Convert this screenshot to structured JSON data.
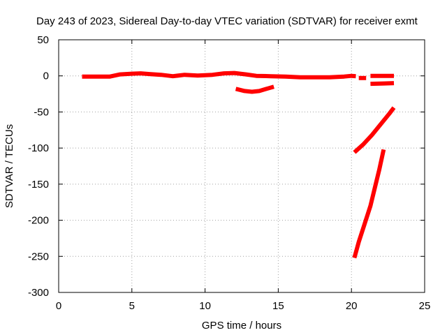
{
  "chart_data": {
    "type": "line",
    "title": "Day 243 of 2023, Sidereal Day-to-day VTEC variation (SDTVAR) for receiver exmt",
    "xlabel": "GPS time / hours",
    "ylabel": "SDTVAR / TECUs",
    "xlim": [
      0,
      25
    ],
    "ylim": [
      -300,
      50
    ],
    "xticks": [
      0,
      5,
      10,
      15,
      20,
      25
    ],
    "yticks": [
      -300,
      -250,
      -200,
      -150,
      -100,
      -50,
      0,
      50
    ],
    "grid": true,
    "legend": "none",
    "color": "#ff0000",
    "series": [
      {
        "x": [
          1.6,
          2.5,
          3.5,
          4.2,
          5.0,
          5.6,
          6.2,
          7.0,
          7.8,
          8.6,
          9.5,
          10.5,
          11.3,
          12.0,
          12.8,
          13.5,
          14.5,
          15.5,
          16.5,
          17.5,
          18.5,
          19.5,
          20.0,
          20.3
        ],
        "y": [
          -1,
          -1,
          -1,
          2,
          3,
          3.5,
          2.5,
          1.5,
          -0.5,
          1.5,
          0.5,
          1.5,
          3.5,
          4,
          2,
          0,
          -0.5,
          -1,
          -2,
          -2,
          -2,
          -1,
          0,
          -0.5
        ]
      },
      {
        "x": [
          20.5,
          21.0
        ],
        "y": [
          -3,
          -3
        ]
      },
      {
        "x": [
          21.3,
          22.0,
          22.9
        ],
        "y": [
          0,
          0,
          0
        ]
      },
      {
        "x": [
          21.3,
          22.2,
          22.9
        ],
        "y": [
          -11,
          -10.5,
          -10
        ]
      },
      {
        "x": [
          12.1,
          12.7,
          13.2,
          13.7,
          14.2,
          14.7
        ],
        "y": [
          -18,
          -21,
          -22,
          -21,
          -18,
          -15
        ]
      },
      {
        "x": [
          20.2,
          20.8,
          21.4,
          22.0,
          22.6,
          22.9
        ],
        "y": [
          -106,
          -95,
          -82,
          -67,
          -52,
          -44
        ]
      },
      {
        "x": [
          20.2,
          20.5,
          20.9,
          21.3,
          21.6,
          21.9,
          22.2
        ],
        "y": [
          -252,
          -230,
          -205,
          -180,
          -155,
          -130,
          -102
        ]
      }
    ]
  }
}
